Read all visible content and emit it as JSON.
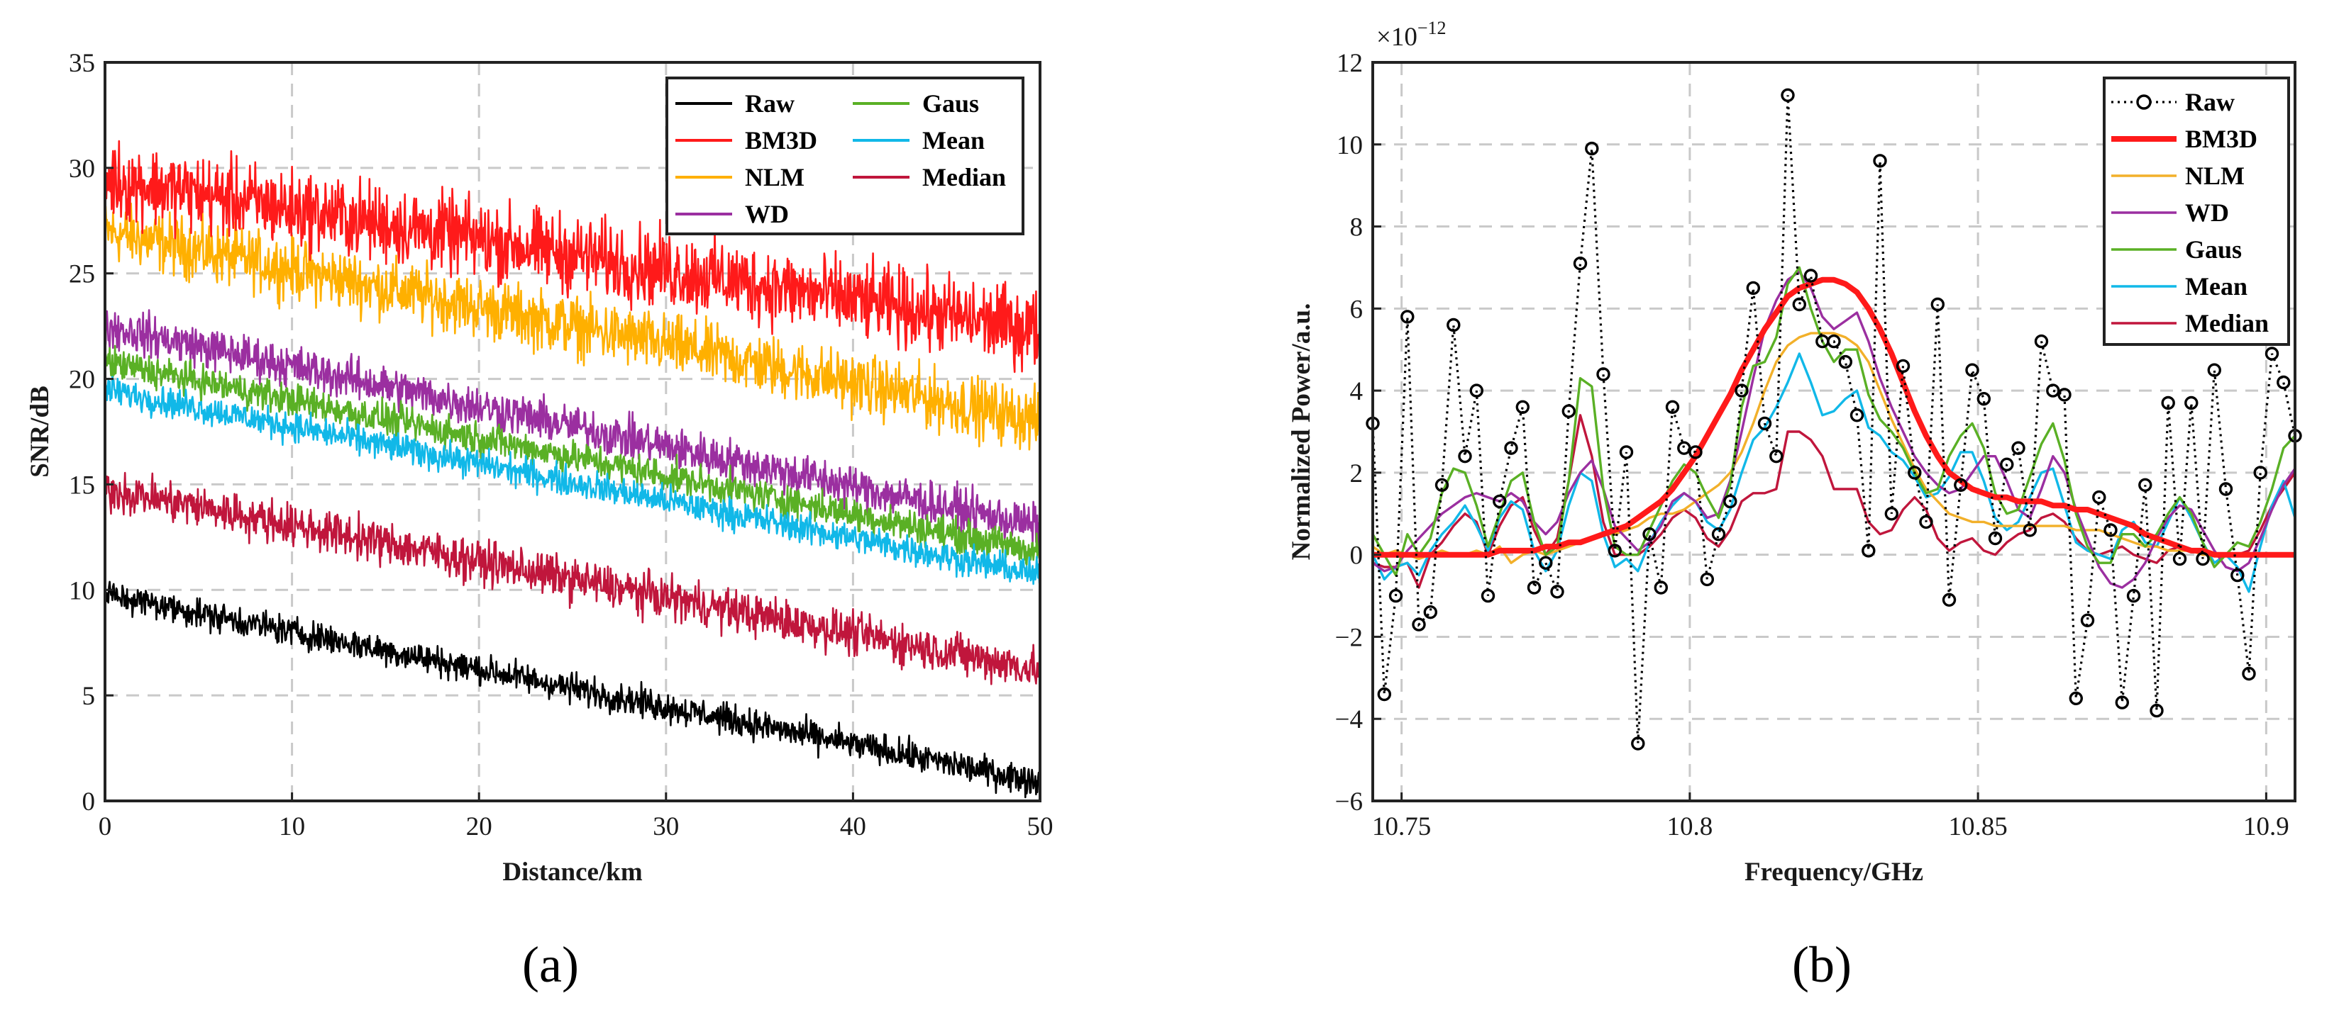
{
  "chart_data": [
    {
      "type": "line",
      "panel_label": "(a)",
      "xlabel": "Distance/km",
      "ylabel": "SNR/dB",
      "xlim": [
        0,
        50
      ],
      "ylim": [
        0,
        35
      ],
      "xticks": [
        "0",
        "10",
        "20",
        "30",
        "40",
        "50"
      ],
      "yticks": [
        "0",
        "5",
        "10",
        "15",
        "20",
        "25",
        "30",
        "35"
      ],
      "grid": true,
      "legend_position": "top-right",
      "legend": [
        "Raw",
        "BM3D",
        "NLM",
        "WD",
        "Gaus",
        "Mean",
        "Median"
      ],
      "series": [
        {
          "name": "Raw",
          "color": "#000000",
          "x": [
            0,
            50
          ],
          "y": [
            9.8,
            0.9
          ],
          "noise_amplitude": 0.5
        },
        {
          "name": "BM3D",
          "color": "#ff1a1a",
          "x": [
            0,
            50
          ],
          "y": [
            29.5,
            22.3
          ],
          "noise_amplitude": 1.3
        },
        {
          "name": "NLM",
          "color": "#ffb000",
          "x": [
            0,
            50
          ],
          "y": [
            27.0,
            18.0
          ],
          "noise_amplitude": 1.0
        },
        {
          "name": "WD",
          "color": "#9b2fa0",
          "x": [
            0,
            50
          ],
          "y": [
            22.5,
            13.0
          ],
          "noise_amplitude": 0.7
        },
        {
          "name": "Gaus",
          "color": "#5ab025",
          "x": [
            0,
            50
          ],
          "y": [
            20.8,
            11.8
          ],
          "noise_amplitude": 0.55
        },
        {
          "name": "Mean",
          "color": "#11b8e8",
          "x": [
            0,
            50
          ],
          "y": [
            19.5,
            10.7
          ],
          "noise_amplitude": 0.5
        },
        {
          "name": "Median",
          "color": "#c0163c",
          "x": [
            0,
            50
          ],
          "y": [
            14.8,
            6.2
          ],
          "noise_amplitude": 0.7
        }
      ]
    },
    {
      "type": "line",
      "panel_label": "(b)",
      "xlabel": "Frequency/GHz",
      "ylabel": "Normalized Power/a.u.",
      "exponent_base": "×10",
      "exponent_power": "−12",
      "xlim": [
        10.745,
        10.905
      ],
      "ylim": [
        -6,
        12
      ],
      "xticks": [
        "10.75",
        "10.8",
        "10.85",
        "10.9"
      ],
      "yticks": [
        "−6",
        "−4",
        "−2",
        "0",
        "2",
        "4",
        "6",
        "8",
        "10",
        "12"
      ],
      "grid": true,
      "legend_position": "top-right",
      "legend": [
        "Raw",
        "BM3D",
        "NLM",
        "WD",
        "Gaus",
        "Mean",
        "Median"
      ],
      "x": [
        10.745,
        10.747,
        10.749,
        10.751,
        10.753,
        10.755,
        10.757,
        10.759,
        10.761,
        10.763,
        10.765,
        10.767,
        10.769,
        10.771,
        10.773,
        10.775,
        10.777,
        10.779,
        10.781,
        10.783,
        10.785,
        10.787,
        10.789,
        10.791,
        10.793,
        10.795,
        10.797,
        10.799,
        10.801,
        10.803,
        10.805,
        10.807,
        10.809,
        10.811,
        10.813,
        10.815,
        10.817,
        10.819,
        10.821,
        10.823,
        10.825,
        10.827,
        10.829,
        10.831,
        10.833,
        10.835,
        10.837,
        10.839,
        10.841,
        10.843,
        10.845,
        10.847,
        10.849,
        10.851,
        10.853,
        10.855,
        10.857,
        10.859,
        10.861,
        10.863,
        10.865,
        10.867,
        10.869,
        10.871,
        10.873,
        10.875,
        10.877,
        10.879,
        10.881,
        10.883,
        10.885,
        10.887,
        10.889,
        10.891,
        10.893,
        10.895,
        10.897,
        10.899,
        10.901,
        10.903,
        10.905
      ],
      "series": [
        {
          "name": "Raw",
          "color": "#000000",
          "style": "dotted-circles",
          "y": [
            3.2,
            -3.4,
            -1.0,
            5.8,
            -1.7,
            -1.4,
            1.7,
            5.6,
            2.4,
            4.0,
            -1.0,
            1.3,
            2.6,
            3.6,
            -0.8,
            -0.2,
            -0.9,
            3.5,
            7.1,
            9.9,
            4.4,
            0.1,
            2.5,
            -4.6,
            0.5,
            -0.8,
            3.6,
            2.6,
            2.5,
            -0.6,
            0.5,
            1.3,
            4.0,
            6.5,
            3.2,
            2.4,
            11.2,
            6.1,
            6.8,
            5.2,
            5.2,
            4.7,
            3.4,
            0.1,
            9.6,
            1.0,
            4.6,
            2.0,
            0.8,
            6.1,
            -1.1,
            1.7,
            4.5,
            3.8,
            0.4,
            2.2,
            2.6,
            0.6,
            5.2,
            4.0,
            3.9,
            -3.5,
            -1.6,
            1.4,
            0.6,
            -3.6,
            -1.0,
            1.7,
            -3.8,
            3.7,
            -0.1,
            3.7,
            -0.1,
            4.5,
            1.6,
            -0.5,
            -2.9,
            2.0,
            4.9,
            4.2,
            2.9
          ]
        },
        {
          "name": "BM3D",
          "color": "#ff1a1a",
          "style": "thick",
          "y": [
            0.0,
            0.0,
            0.0,
            0.0,
            0.0,
            0.0,
            0.0,
            0.0,
            0.0,
            0.0,
            0.0,
            0.1,
            0.1,
            0.1,
            0.1,
            0.2,
            0.2,
            0.3,
            0.3,
            0.4,
            0.5,
            0.6,
            0.7,
            0.9,
            1.1,
            1.3,
            1.6,
            2.0,
            2.4,
            2.9,
            3.4,
            3.9,
            4.5,
            5.0,
            5.5,
            5.9,
            6.3,
            6.5,
            6.6,
            6.7,
            6.7,
            6.6,
            6.4,
            6.0,
            5.5,
            4.9,
            4.2,
            3.5,
            2.9,
            2.4,
            2.0,
            1.8,
            1.6,
            1.5,
            1.4,
            1.4,
            1.3,
            1.3,
            1.3,
            1.2,
            1.2,
            1.1,
            1.1,
            1.0,
            0.9,
            0.8,
            0.7,
            0.5,
            0.4,
            0.3,
            0.2,
            0.1,
            0.1,
            0.0,
            0.0,
            0.0,
            0.0,
            0.0,
            0.0,
            0.0,
            0.0
          ]
        },
        {
          "name": "NLM",
          "color": "#f2b02a",
          "style": "thin",
          "y": [
            0.2,
            0.0,
            0.1,
            0.0,
            -0.1,
            0.0,
            0.1,
            0.0,
            0.0,
            0.1,
            0.0,
            0.2,
            -0.2,
            0.0,
            0.1,
            0.0,
            0.1,
            0.2,
            0.3,
            0.4,
            0.5,
            0.5,
            0.6,
            0.7,
            0.9,
            1.0,
            1.0,
            1.1,
            1.3,
            1.5,
            1.7,
            2.0,
            2.5,
            3.2,
            4.0,
            4.7,
            5.1,
            5.3,
            5.4,
            5.4,
            5.4,
            5.3,
            5.1,
            4.7,
            4.0,
            3.3,
            2.7,
            2.1,
            1.6,
            1.3,
            1.0,
            0.9,
            0.8,
            0.8,
            0.7,
            0.7,
            0.7,
            0.7,
            0.7,
            0.7,
            0.7,
            0.6,
            0.6,
            0.6,
            0.5,
            0.4,
            0.3,
            0.2,
            0.2,
            0.1,
            0.1,
            0.1,
            0.0,
            0.0,
            0.0,
            0.0,
            0.0,
            0.0,
            0.0,
            0.0,
            0.0
          ]
        },
        {
          "name": "WD",
          "color": "#9b2fa0",
          "style": "thin",
          "y": [
            -0.2,
            -0.4,
            -0.3,
            0.1,
            0.4,
            0.7,
            1.0,
            1.2,
            1.4,
            1.5,
            1.4,
            1.3,
            1.5,
            1.3,
            0.8,
            0.5,
            0.8,
            1.5,
            2.0,
            2.3,
            1.6,
            0.7,
            0.4,
            0.1,
            0.3,
            0.7,
            1.3,
            1.5,
            1.3,
            0.9,
            1.0,
            1.8,
            3.0,
            4.3,
            5.5,
            6.2,
            6.7,
            6.9,
            6.5,
            5.8,
            5.5,
            5.7,
            5.9,
            5.2,
            4.3,
            3.6,
            3.0,
            2.4,
            2.0,
            1.7,
            1.5,
            1.6,
            2.0,
            2.4,
            2.4,
            1.8,
            1.1,
            0.9,
            1.6,
            2.4,
            2.0,
            1.1,
            0.4,
            -0.3,
            -0.7,
            -0.8,
            -0.6,
            -0.2,
            0.4,
            0.9,
            1.2,
            1.1,
            0.6,
            0.1,
            -0.3,
            -0.4,
            -0.2,
            0.4,
            1.1,
            1.7,
            2.1
          ]
        },
        {
          "name": "Gaus",
          "color": "#5ab025",
          "style": "thin",
          "y": [
            0.5,
            0.0,
            -0.5,
            0.5,
            0.0,
            0.4,
            1.5,
            2.1,
            2.0,
            1.2,
            0.2,
            1.0,
            1.8,
            2.0,
            0.8,
            0.0,
            0.2,
            1.8,
            4.3,
            4.1,
            1.6,
            0.2,
            0.0,
            0.0,
            0.6,
            1.2,
            1.8,
            2.2,
            2.0,
            1.4,
            0.9,
            1.7,
            3.6,
            4.6,
            4.7,
            5.3,
            6.6,
            7.0,
            6.0,
            5.2,
            4.7,
            5.0,
            5.0,
            3.9,
            3.3,
            3.0,
            2.6,
            2.0,
            1.5,
            1.6,
            2.4,
            2.9,
            3.2,
            2.6,
            1.5,
            1.0,
            1.1,
            1.9,
            2.7,
            3.2,
            2.3,
            1.0,
            0.2,
            -0.2,
            -0.2,
            0.5,
            0.5,
            0.2,
            0.5,
            1.0,
            1.4,
            1.0,
            0.3,
            -0.3,
            0.0,
            0.3,
            0.2,
            0.8,
            1.6,
            2.6,
            2.9
          ]
        },
        {
          "name": "Mean",
          "color": "#11b8e8",
          "style": "thin",
          "y": [
            0.0,
            -0.6,
            -0.3,
            -0.2,
            -0.5,
            0.1,
            0.5,
            0.8,
            1.2,
            0.7,
            0.1,
            0.9,
            1.3,
            1.1,
            0.1,
            -0.4,
            0.1,
            1.2,
            2.0,
            1.8,
            0.5,
            -0.3,
            -0.1,
            -0.4,
            0.3,
            0.8,
            1.2,
            1.5,
            1.3,
            0.8,
            0.6,
            1.1,
            2.0,
            2.8,
            3.1,
            3.6,
            4.2,
            4.9,
            4.2,
            3.4,
            3.5,
            3.8,
            4.0,
            3.1,
            2.9,
            2.5,
            2.3,
            1.9,
            1.4,
            1.5,
            1.9,
            2.5,
            2.5,
            1.8,
            0.9,
            0.6,
            0.8,
            1.4,
            2.0,
            2.1,
            1.2,
            0.3,
            0.1,
            0.0,
            -0.1,
            0.6,
            0.8,
            0.3,
            0.2,
            0.8,
            1.4,
            0.9,
            0.3,
            -0.2,
            0.0,
            -0.3,
            -0.9,
            0.2,
            1.2,
            1.8,
            0.9
          ]
        },
        {
          "name": "Median",
          "color": "#c0163c",
          "style": "thin",
          "y": [
            -0.2,
            -0.3,
            -0.3,
            -0.2,
            -0.8,
            0.0,
            0.3,
            0.7,
            1.0,
            0.8,
            0.0,
            0.7,
            1.2,
            1.4,
            0.6,
            0.0,
            0.4,
            1.8,
            3.4,
            2.4,
            0.8,
            0.0,
            0.0,
            0.0,
            0.2,
            0.5,
            0.9,
            1.1,
            0.9,
            0.4,
            0.2,
            0.6,
            1.3,
            1.5,
            1.5,
            1.6,
            3.0,
            3.0,
            2.8,
            2.4,
            1.6,
            1.6,
            1.6,
            0.8,
            0.5,
            0.6,
            1.1,
            1.4,
            1.1,
            0.4,
            0.1,
            0.3,
            0.4,
            0.1,
            0.0,
            0.3,
            0.5,
            0.6,
            0.9,
            1.0,
            0.8,
            0.4,
            0.1,
            0.0,
            0.1,
            0.2,
            0.0,
            -0.1,
            -0.2,
            0.1,
            0.2,
            0.1,
            0.0,
            0.0,
            0.0,
            0.0,
            0.1,
            0.6,
            1.2,
            1.6,
            2.0
          ]
        }
      ]
    }
  ]
}
